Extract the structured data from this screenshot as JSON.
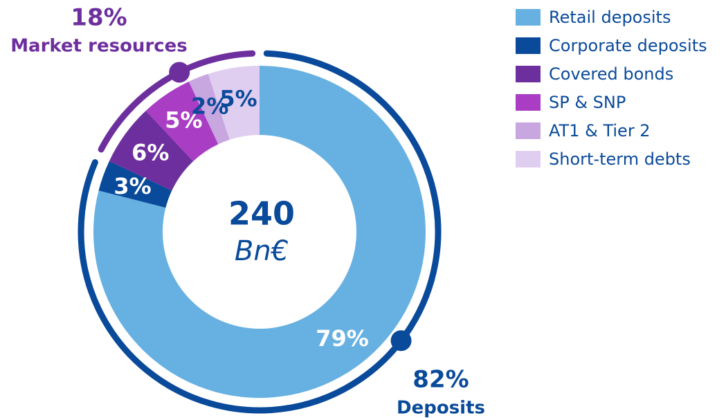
{
  "chart_data": {
    "type": "donut",
    "categories": [
      "Retail deposits",
      "Corporate deposits",
      "Covered bonds",
      "SP & SNP",
      "AT1 & Tier 2",
      "Short-term debts"
    ],
    "values": [
      79,
      3,
      6,
      5,
      2,
      5
    ],
    "value_labels": [
      "79%",
      "3%",
      "6%",
      "5%",
      "2%",
      "5%"
    ],
    "colors": [
      "#67b1e2",
      "#0a4a9a",
      "#6e2f9e",
      "#a93ec4",
      "#c8a6e0",
      "#e0cef0"
    ],
    "center_value": "240",
    "center_unit": "Bn€",
    "groups": [
      {
        "name": "Deposits",
        "value": 82,
        "value_label": "82%",
        "color": "#0a4a9a"
      },
      {
        "name": "Market resources",
        "value": 18,
        "value_label": "18%",
        "color": "#6e2f9e"
      }
    ],
    "legend": "top-right"
  }
}
